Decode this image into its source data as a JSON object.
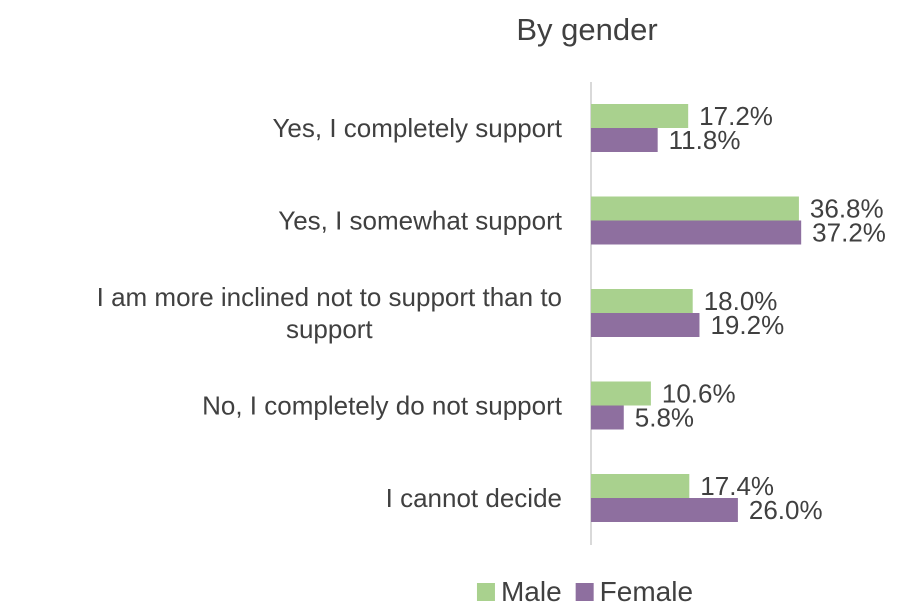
{
  "chart_data": {
    "type": "bar",
    "orientation": "horizontal",
    "title": "By gender",
    "categories": [
      [
        "Yes, I completely support"
      ],
      [
        "Yes, I somewhat support"
      ],
      [
        "I am more inclined not to support than to",
        "support"
      ],
      [
        "No, I completely do not support"
      ],
      [
        "I cannot decide"
      ]
    ],
    "series": [
      {
        "name": "Male",
        "color": "#a9d18e",
        "values": [
          17.2,
          36.8,
          18.0,
          10.6,
          17.4
        ],
        "labels": [
          "17.2%",
          "36.8%",
          "18.0%",
          "10.6%",
          "17.4%"
        ]
      },
      {
        "name": "Female",
        "color": "#8e6f9f",
        "values": [
          11.8,
          37.2,
          19.2,
          5.8,
          26.0
        ],
        "labels": [
          "11.8%",
          "37.2%",
          "19.2%",
          "5.8%",
          "26.0%"
        ]
      }
    ],
    "xlim": [
      0,
      40
    ],
    "value_suffix": "%",
    "legend_position": "bottom",
    "grid": false
  }
}
